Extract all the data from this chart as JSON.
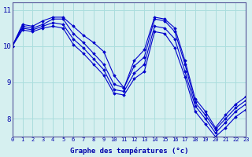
{
  "xlabel": "Graphe des températures (°c)",
  "bg_color": "#d6f0f0",
  "line_color": "#0000cc",
  "grid_color": "#aadddd",
  "axis_color": "#0000aa",
  "xlim": [
    0,
    23
  ],
  "ylim": [
    7.5,
    11.2
  ],
  "yticks": [
    8,
    9,
    10,
    11
  ],
  "xticks": [
    0,
    1,
    2,
    3,
    4,
    5,
    6,
    7,
    8,
    9,
    10,
    11,
    12,
    13,
    14,
    15,
    16,
    17,
    18,
    19,
    20,
    21,
    22,
    23
  ],
  "series": [
    {
      "x": [
        0,
        1,
        2,
        3,
        4,
        5,
        6,
        7,
        8,
        9,
        10,
        11,
        12,
        13,
        14,
        15,
        16,
        17,
        18,
        19,
        20,
        21,
        22,
        23
      ],
      "y": [
        10.0,
        10.6,
        10.55,
        10.7,
        10.8,
        10.8,
        10.55,
        10.3,
        10.1,
        9.85,
        9.2,
        8.85,
        9.6,
        9.9,
        10.8,
        10.75,
        10.5,
        9.6,
        8.55,
        8.2,
        7.75,
        8.1,
        8.4,
        8.6
      ]
    },
    {
      "x": [
        0,
        1,
        2,
        3,
        4,
        5,
        6,
        7,
        8,
        9,
        10,
        11,
        12,
        13,
        14,
        15,
        16,
        17,
        18,
        19,
        20,
        21,
        22,
        23
      ],
      "y": [
        10.0,
        10.55,
        10.5,
        10.6,
        10.75,
        10.75,
        10.35,
        10.1,
        9.8,
        9.5,
        8.95,
        8.85,
        9.45,
        9.7,
        10.75,
        10.7,
        10.4,
        9.5,
        8.45,
        8.1,
        7.7,
        8.0,
        8.3,
        8.5
      ]
    },
    {
      "x": [
        0,
        1,
        2,
        3,
        4,
        5,
        6,
        7,
        8,
        9,
        10,
        11,
        12,
        13,
        14,
        15,
        16,
        17,
        18,
        19,
        20,
        21,
        22,
        23
      ],
      "y": [
        10.0,
        10.5,
        10.45,
        10.55,
        10.65,
        10.6,
        10.2,
        9.95,
        9.65,
        9.35,
        8.8,
        8.75,
        9.25,
        9.5,
        10.55,
        10.5,
        10.2,
        9.3,
        8.35,
        8.0,
        7.6,
        7.9,
        8.2,
        8.4
      ]
    },
    {
      "x": [
        0,
        1,
        2,
        3,
        4,
        5,
        6,
        7,
        8,
        9,
        10,
        11,
        12,
        13,
        14,
        15,
        16,
        17,
        18,
        19,
        20,
        21,
        22,
        23
      ],
      "y": [
        10.0,
        10.45,
        10.4,
        10.5,
        10.55,
        10.5,
        10.05,
        9.8,
        9.5,
        9.2,
        8.7,
        8.65,
        9.1,
        9.3,
        10.4,
        10.35,
        9.95,
        9.15,
        8.2,
        7.85,
        7.5,
        7.75,
        8.05,
        8.25
      ]
    }
  ]
}
